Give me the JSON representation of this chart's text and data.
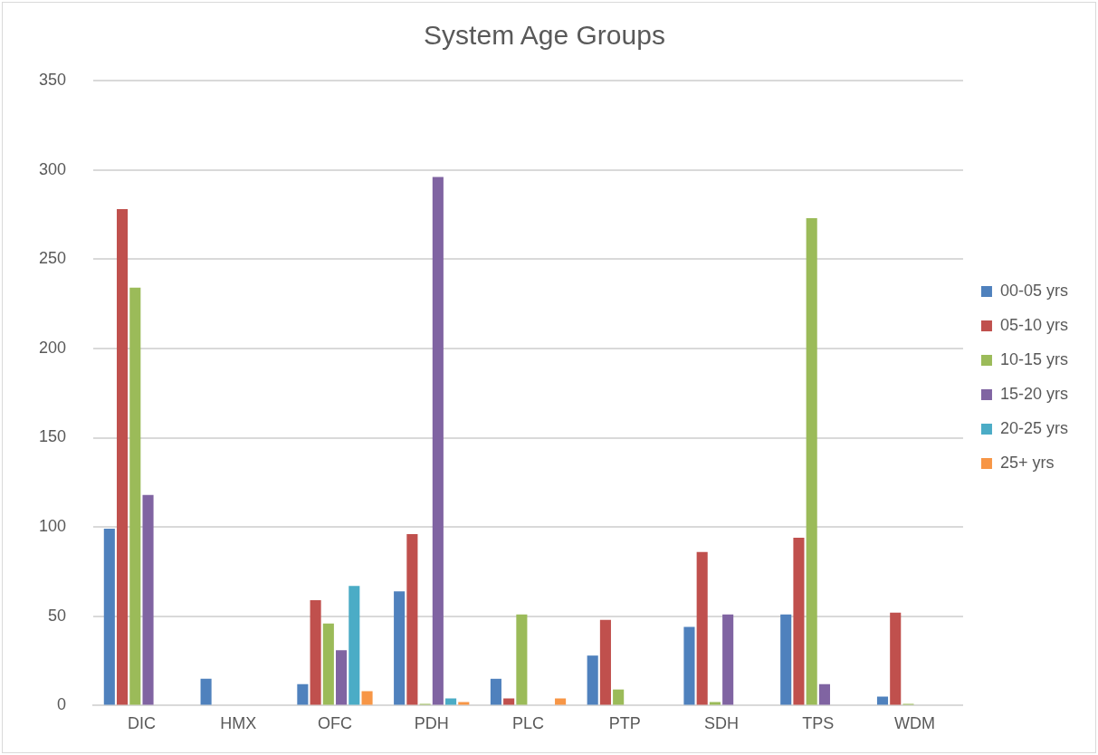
{
  "chart_data": {
    "type": "bar",
    "title": "System Age Groups",
    "categories": [
      "DIC",
      "HMX",
      "OFC",
      "PDH",
      "PLC",
      "PTP",
      "SDH",
      "TPS",
      "WDM"
    ],
    "series": [
      {
        "name": "00-05 yrs",
        "color": "#4f81bd",
        "values": [
          99,
          15,
          12,
          64,
          15,
          28,
          44,
          51,
          5
        ]
      },
      {
        "name": "05-10 yrs",
        "color": "#c0504d",
        "values": [
          278,
          0,
          59,
          96,
          4,
          48,
          86,
          94,
          52
        ]
      },
      {
        "name": "10-15 yrs",
        "color": "#9bbb59",
        "values": [
          234,
          0,
          46,
          1,
          51,
          9,
          2,
          273,
          1
        ]
      },
      {
        "name": "15-20 yrs",
        "color": "#8064a2",
        "values": [
          118,
          0,
          31,
          296,
          0,
          0,
          51,
          12,
          0
        ]
      },
      {
        "name": "20-25 yrs",
        "color": "#4bacc6",
        "values": [
          0,
          0,
          67,
          4,
          0,
          0,
          0,
          0,
          0
        ]
      },
      {
        "name": "25+ yrs",
        "color": "#f79646",
        "values": [
          0,
          0,
          8,
          2,
          4,
          0,
          0,
          0,
          0
        ]
      }
    ],
    "ylim": [
      0,
      350
    ],
    "yticks": [
      0,
      50,
      100,
      150,
      200,
      250,
      300,
      350
    ],
    "grid": "y",
    "legend": "right"
  }
}
